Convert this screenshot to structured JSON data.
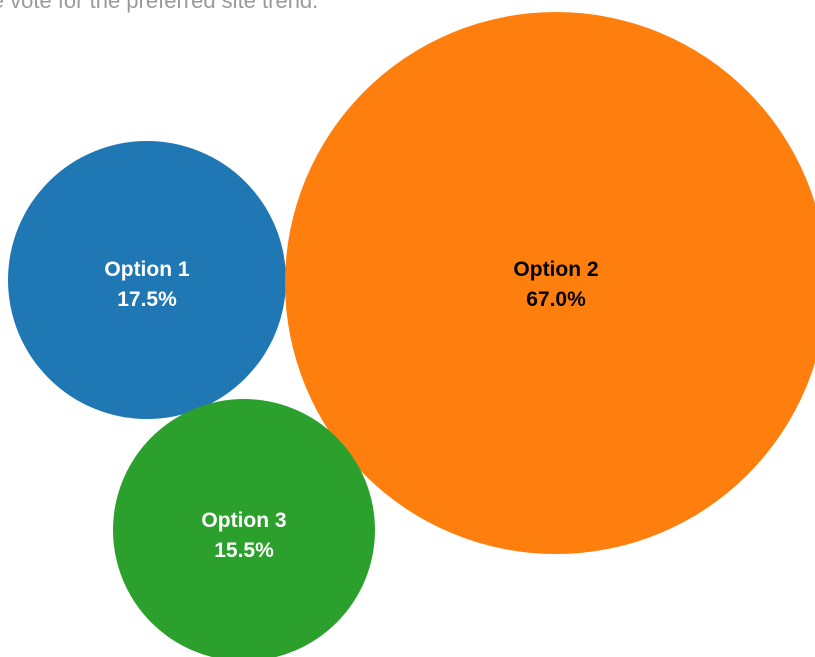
{
  "chart_data": {
    "type": "bubble",
    "title": "ile vote for the preferred site trend.",
    "series": [
      {
        "name": "Option 1",
        "label": "Option 1",
        "value": 17.5,
        "value_label": "17.5%",
        "color": "#1f77b4",
        "text_color": "#ffffff"
      },
      {
        "name": "Option 2",
        "label": "Option 2",
        "value": 67.0,
        "value_label": "67.0%",
        "color": "#ff7f0e",
        "text_color": "#000000"
      },
      {
        "name": "Option 3",
        "label": "Option 3",
        "value": 15.5,
        "value_label": "15.5%",
        "color": "#2ca02c",
        "text_color": "#ffffff"
      }
    ]
  }
}
